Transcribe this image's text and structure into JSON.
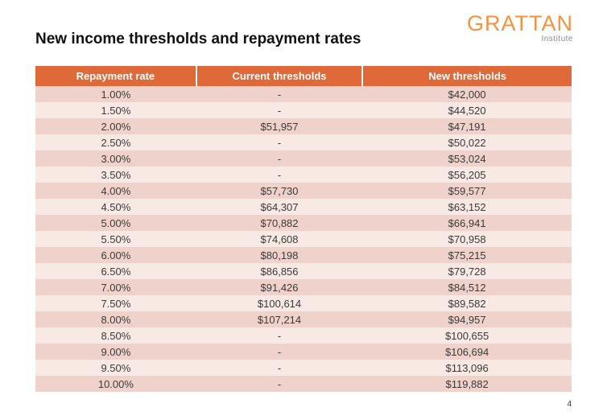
{
  "slide": {
    "title": "New income thresholds and repayment rates",
    "page_number": "4",
    "logo": {
      "name": "GRATTAN",
      "subtitle": "Institute"
    }
  },
  "colors": {
    "header_bg": "#e0693a",
    "row_dark": "#efd2cb",
    "row_light": "#f8e9e5",
    "logo_orange": "#f6913e",
    "logo_gray": "#8a8a8a"
  },
  "chart_data": {
    "type": "table",
    "title": "New income thresholds and repayment rates",
    "columns": [
      "Repayment rate",
      "Current thresholds",
      "New thresholds"
    ],
    "rows": [
      [
        "1.00%",
        "-",
        "$42,000"
      ],
      [
        "1.50%",
        "-",
        "$44,520"
      ],
      [
        "2.00%",
        "$51,957",
        "$47,191"
      ],
      [
        "2.50%",
        "-",
        "$50,022"
      ],
      [
        "3.00%",
        "-",
        "$53,024"
      ],
      [
        "3.50%",
        "-",
        "$56,205"
      ],
      [
        "4.00%",
        "$57,730",
        "$59,577"
      ],
      [
        "4.50%",
        "$64,307",
        "$63,152"
      ],
      [
        "5.00%",
        "$70,882",
        "$66,941"
      ],
      [
        "5.50%",
        "$74,608",
        "$70,958"
      ],
      [
        "6.00%",
        "$80,198",
        "$75,215"
      ],
      [
        "6.50%",
        "$86,856",
        "$79,728"
      ],
      [
        "7.00%",
        "$91,426",
        "$84,512"
      ],
      [
        "7.50%",
        "$100,614",
        "$89,582"
      ],
      [
        "8.00%",
        "$107,214",
        "$94,957"
      ],
      [
        "8.50%",
        "-",
        "$100,655"
      ],
      [
        "9.00%",
        "-",
        "$106,694"
      ],
      [
        "9.50%",
        "-",
        "$113,096"
      ],
      [
        "10.00%",
        "-",
        "$119,882"
      ]
    ]
  }
}
